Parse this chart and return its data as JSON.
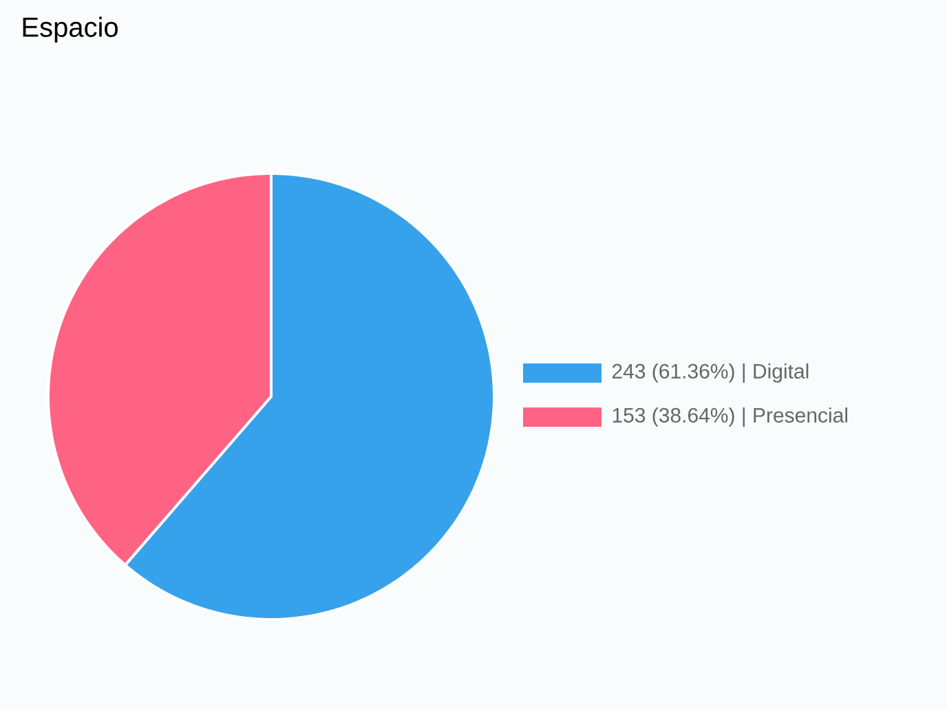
{
  "chart_data": {
    "type": "pie",
    "title": "Espacio",
    "categories": [
      "243 (61.36%) | Digital",
      "153 (38.64%) | Presencial"
    ],
    "values": [
      243,
      153
    ],
    "colors": [
      "#36a2eb",
      "#ff6384"
    ],
    "legend": "right"
  }
}
